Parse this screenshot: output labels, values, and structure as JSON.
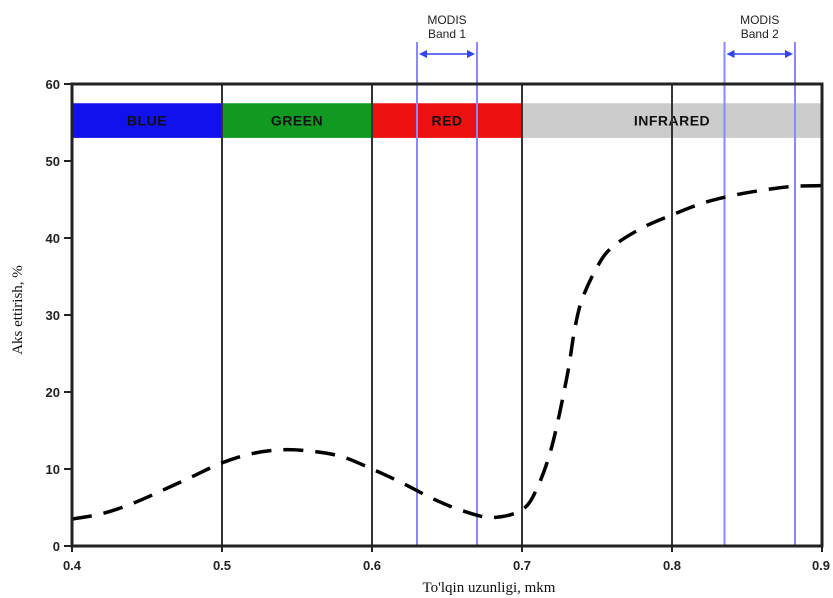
{
  "chart_data": {
    "type": "line",
    "xlabel": "To'lqin uzunligi, mkm",
    "ylabel": "Aks ettirish, %",
    "xlim": [
      0.4,
      0.9
    ],
    "ylim": [
      0,
      60
    ],
    "x_ticks": [
      "0.4",
      "0.5",
      "0.6",
      "0.7",
      "0.8",
      "0.9"
    ],
    "y_ticks": [
      "0",
      "10",
      "20",
      "30",
      "40",
      "50",
      "60"
    ],
    "color_bands": [
      {
        "label": "BLUE",
        "x_start": 0.4,
        "x_end": 0.5,
        "color": "#1111ee",
        "text_color": "#0a0a6a"
      },
      {
        "label": "GREEN",
        "x_start": 0.5,
        "x_end": 0.6,
        "color": "#119922",
        "text_color": "#0a3a10"
      },
      {
        "label": "RED",
        "x_start": 0.6,
        "x_end": 0.7,
        "color": "#ee1111",
        "text_color": "#3a0000"
      },
      {
        "label": "INFRARED",
        "x_start": 0.7,
        "x_end": 0.9,
        "color": "#cccccc",
        "text_color": "#222222"
      }
    ],
    "band_y_range": [
      53,
      57.5
    ],
    "modis_bands": [
      {
        "label_line1": "MODIS",
        "label_line2": "Band 1",
        "x_start": 0.63,
        "x_end": 0.67,
        "color": "#8888ff"
      },
      {
        "label_line1": "MODIS",
        "label_line2": "Band 2",
        "x_start": 0.835,
        "x_end": 0.882,
        "color": "#8888ff"
      }
    ],
    "gridlines_x": [
      0.5,
      0.6,
      0.7,
      0.8
    ],
    "series": [
      {
        "style": "dashed",
        "color": "#000000",
        "x": [
          0.4,
          0.42,
          0.44,
          0.46,
          0.48,
          0.5,
          0.52,
          0.54,
          0.56,
          0.58,
          0.6,
          0.62,
          0.64,
          0.66,
          0.68,
          0.7,
          0.71,
          0.72,
          0.73,
          0.735,
          0.74,
          0.75,
          0.76,
          0.78,
          0.8,
          0.82,
          0.84,
          0.86,
          0.88,
          0.9
        ],
        "y": [
          3.5,
          4.2,
          5.5,
          7.2,
          9.0,
          10.8,
          12.0,
          12.5,
          12.3,
          11.6,
          10.0,
          8.2,
          6.2,
          4.6,
          3.7,
          4.7,
          7.5,
          13.0,
          22.0,
          28.0,
          32.0,
          36.2,
          38.8,
          41.3,
          43.0,
          44.5,
          45.5,
          46.2,
          46.7,
          46.8
        ]
      }
    ]
  }
}
